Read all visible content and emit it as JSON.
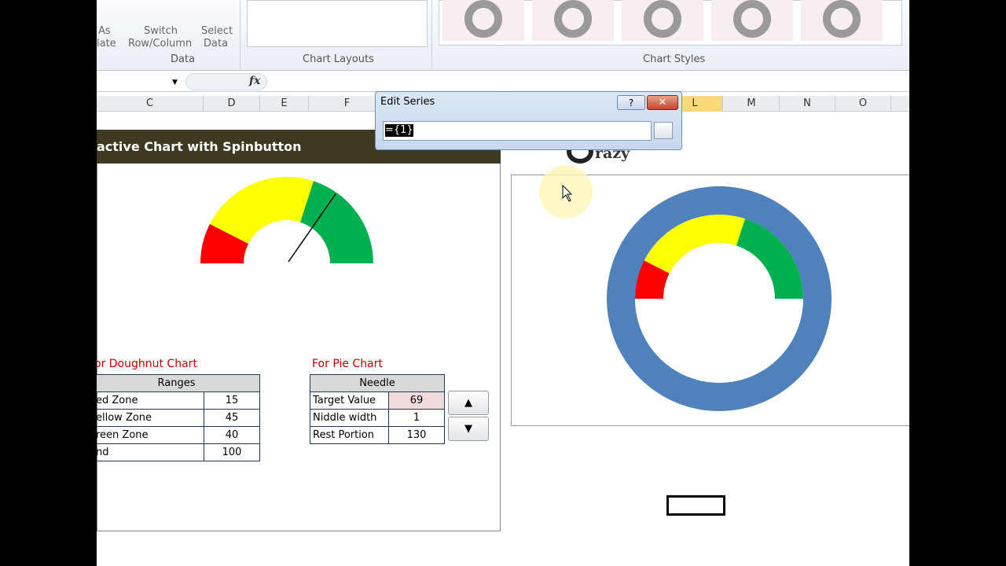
{
  "ribbon": {
    "save_as": [
      "As",
      "late"
    ],
    "switch": [
      "Switch",
      "Row/Column"
    ],
    "select": [
      "Select",
      "Data"
    ],
    "data_group": "Data",
    "chart_layouts": "Chart Layouts",
    "chart_styles": "Chart Styles"
  },
  "formula_bar": {
    "fx": "fx"
  },
  "columns": [
    "C",
    "D",
    "E",
    "F",
    "L",
    "M",
    "N",
    "O"
  ],
  "dialog": {
    "title": "Edit Series",
    "help": "?",
    "value": "={1}"
  },
  "sheet": {
    "title": "active Chart with Spinbutton",
    "logo": "razy",
    "doughnut_label": "or Doughnut Chart",
    "ranges": {
      "header": "Ranges",
      "rows": [
        [
          "ed Zone",
          15
        ],
        [
          "ellow Zone",
          45
        ],
        [
          "reen Zone",
          40
        ],
        [
          "nd",
          100
        ]
      ]
    },
    "pie_label": "For Pie Chart",
    "needle": {
      "header": "Needle",
      "rows": [
        [
          "Target Value",
          69
        ],
        [
          "Niddle width",
          1
        ],
        [
          "Rest Portion",
          130
        ]
      ]
    }
  }
}
